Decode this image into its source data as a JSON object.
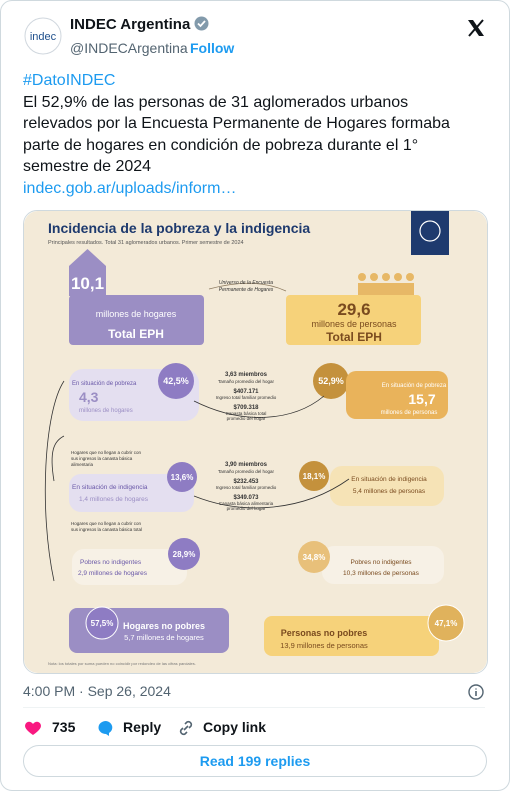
{
  "header": {
    "avatar_text": "indec",
    "name": "INDEC Argentina",
    "handle": "@INDECArgentina",
    "follow": "Follow"
  },
  "tweet": {
    "hashtag": "#DatoINDEC",
    "body": "El 52,9% de las personas de 31 aglomerados urbanos relevados por la Encuesta Permanente de Hogares formaba parte de hogares en condición de pobreza durante el 1° semestre de 2024",
    "link": "indec.gob.ar/uploads/inform…"
  },
  "infographic": {
    "title": "Incidencia de la pobreza y la indigencia",
    "subtitle": "Principales resultados. Total 31 aglomerados urbanos. Primer semestre de 2024",
    "total_households": {
      "value": "10,1",
      "unit": "millones de hogares",
      "label": "Total EPH"
    },
    "universe": [
      "Universo de la Encuesta",
      "Permanente de Hogares"
    ],
    "total_persons": {
      "value": "29,6",
      "unit": "millones de personas",
      "label": "Total EPH"
    },
    "poverty_households": {
      "label": "En situación de pobreza",
      "value": "4,3",
      "unit": "millones de hogares",
      "percent": "42,5%"
    },
    "poverty_profile": [
      "3,63 miembros",
      "Tamaño promedio del hogar",
      "$407.171",
      "Ingreso total familiar promedio",
      "$709.318",
      "Canasta básica total",
      "promedio del hogar"
    ],
    "poverty_persons": {
      "percent": "52,9%",
      "label": "En situación de pobreza",
      "value": "15,7",
      "unit": "millones de personas"
    },
    "note_food": [
      "Hogares que no llegan a cubrir con",
      "sus ingresos la canasta básica",
      "alimentaria"
    ],
    "indigence_households": {
      "label": "En situación de indigencia",
      "detail": "1,4 millones de hogares",
      "percent": "13,6%"
    },
    "indigence_profile": [
      "3,90 miembros",
      "Tamaño promedio del hogar",
      "$232.453",
      "Ingreso total familiar promedio",
      "$349.073",
      "Canasta básica alimentaria",
      "promedio del hogar"
    ],
    "indigence_persons": {
      "percent": "18,1%",
      "label": "En situación de indigencia",
      "detail": "5,4 millones de personas"
    },
    "note_total": [
      "Hogares que no llegan a cubrir con",
      "sus ingresos la canasta básica total"
    ],
    "poor_not_indigent_households": {
      "label": "Pobres no indigentes",
      "detail": "2,9 millones de hogares",
      "percent": "28,9%"
    },
    "poor_not_indigent_persons": {
      "percent": "34,8%",
      "label": "Pobres no indigentes",
      "detail": "10,3 millones de personas"
    },
    "non_poor_households": {
      "percent": "57,5%",
      "label": "Hogares no pobres",
      "detail": "5,7 millones de hogares"
    },
    "non_poor_persons": {
      "label": "Personas no pobres",
      "detail": "13,9 millones de personas",
      "percent": "47,1%"
    },
    "footnote": "Nota: los totales por suma pueden no coincidir por redondeo de las cifras parciales."
  },
  "footer": {
    "timestamp": "4:00 PM · Sep 26, 2024",
    "likes": "735",
    "reply": "Reply",
    "copy_link": "Copy link",
    "read_replies": "Read 199 replies"
  }
}
